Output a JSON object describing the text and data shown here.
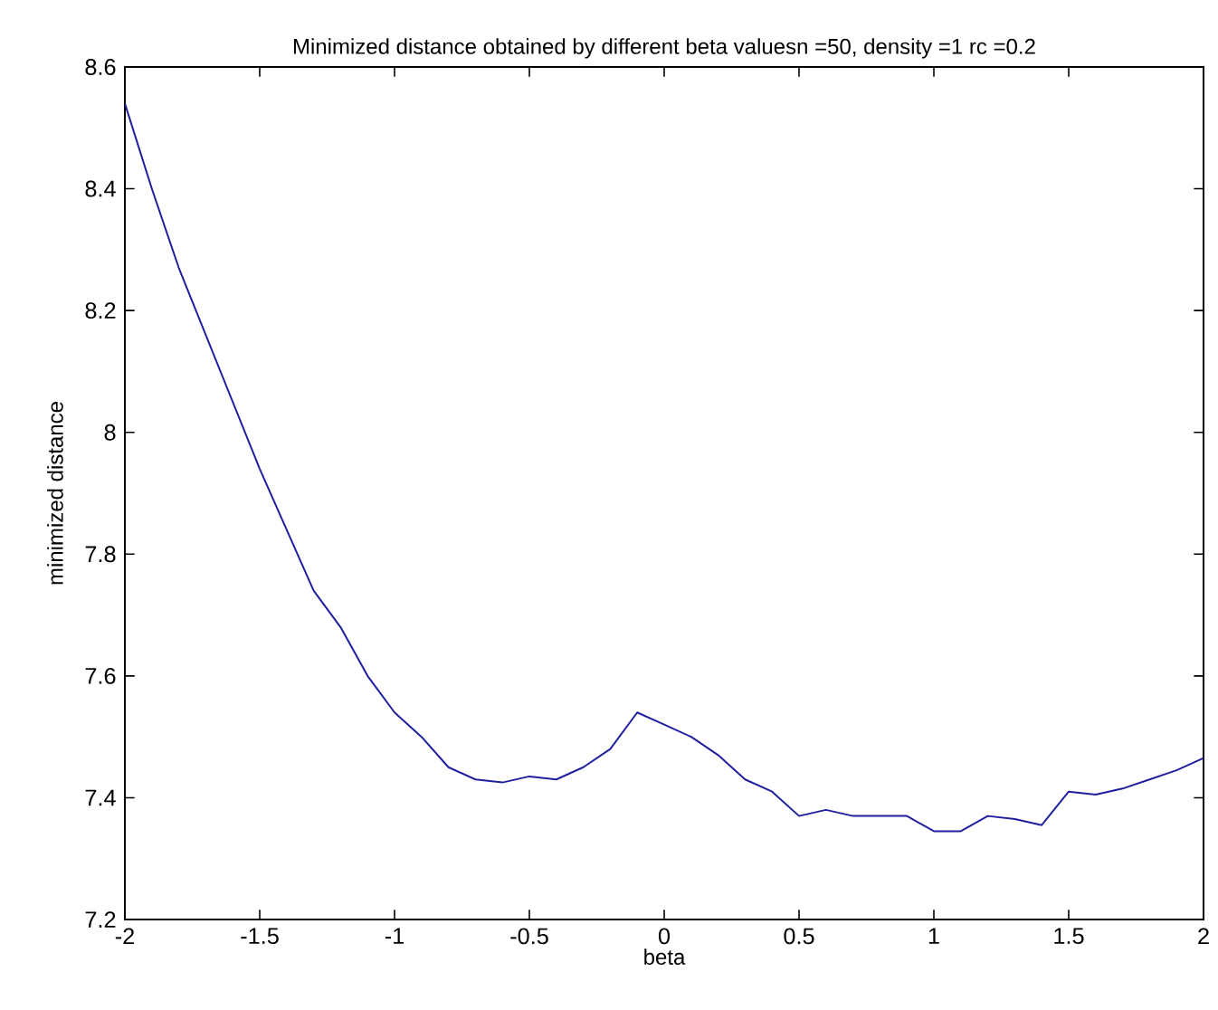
{
  "chart_data": {
    "type": "line",
    "title": "Minimized distance obtained by different beta valuesn =50, density =1 rc =0.2",
    "xlabel": "beta",
    "ylabel": "minimized distance",
    "x": [
      -2,
      -1.9,
      -1.8,
      -1.7,
      -1.6,
      -1.5,
      -1.4,
      -1.3,
      -1.2,
      -1.1,
      -1,
      -0.9,
      -0.8,
      -0.7,
      -0.6,
      -0.5,
      -0.4,
      -0.3,
      -0.2,
      -0.1,
      0,
      0.1,
      0.2,
      0.3,
      0.4,
      0.5,
      0.6,
      0.7,
      0.8,
      0.9,
      1,
      1.1,
      1.2,
      1.3,
      1.4,
      1.5,
      1.6,
      1.7,
      1.8,
      1.9,
      2
    ],
    "series": [
      {
        "color": "#1f1fa0",
        "values": [
          8.54,
          8.4,
          8.27,
          8.16,
          8.05,
          7.94,
          7.84,
          7.74,
          7.68,
          7.6,
          7.54,
          7.5,
          7.45,
          7.43,
          7.425,
          7.435,
          7.43,
          7.45,
          7.48,
          7.54,
          7.52,
          7.5,
          7.47,
          7.43,
          7.41,
          7.37,
          7.38,
          7.37,
          7.37,
          7.37,
          7.345,
          7.345,
          7.37,
          7.365,
          7.355,
          7.41,
          7.405,
          7.415,
          7.43,
          7.445,
          7.465
        ]
      }
    ],
    "xlim": [
      -2,
      2
    ],
    "ylim": [
      7.2,
      8.6
    ],
    "xticks": [
      -2,
      -1.5,
      -1,
      -0.5,
      0,
      0.5,
      1,
      1.5,
      2
    ],
    "yticks": [
      7.2,
      7.4,
      7.6,
      7.8,
      8,
      8.2,
      8.4,
      8.6
    ],
    "grid": false,
    "marker": "none",
    "line_style": "solid"
  }
}
